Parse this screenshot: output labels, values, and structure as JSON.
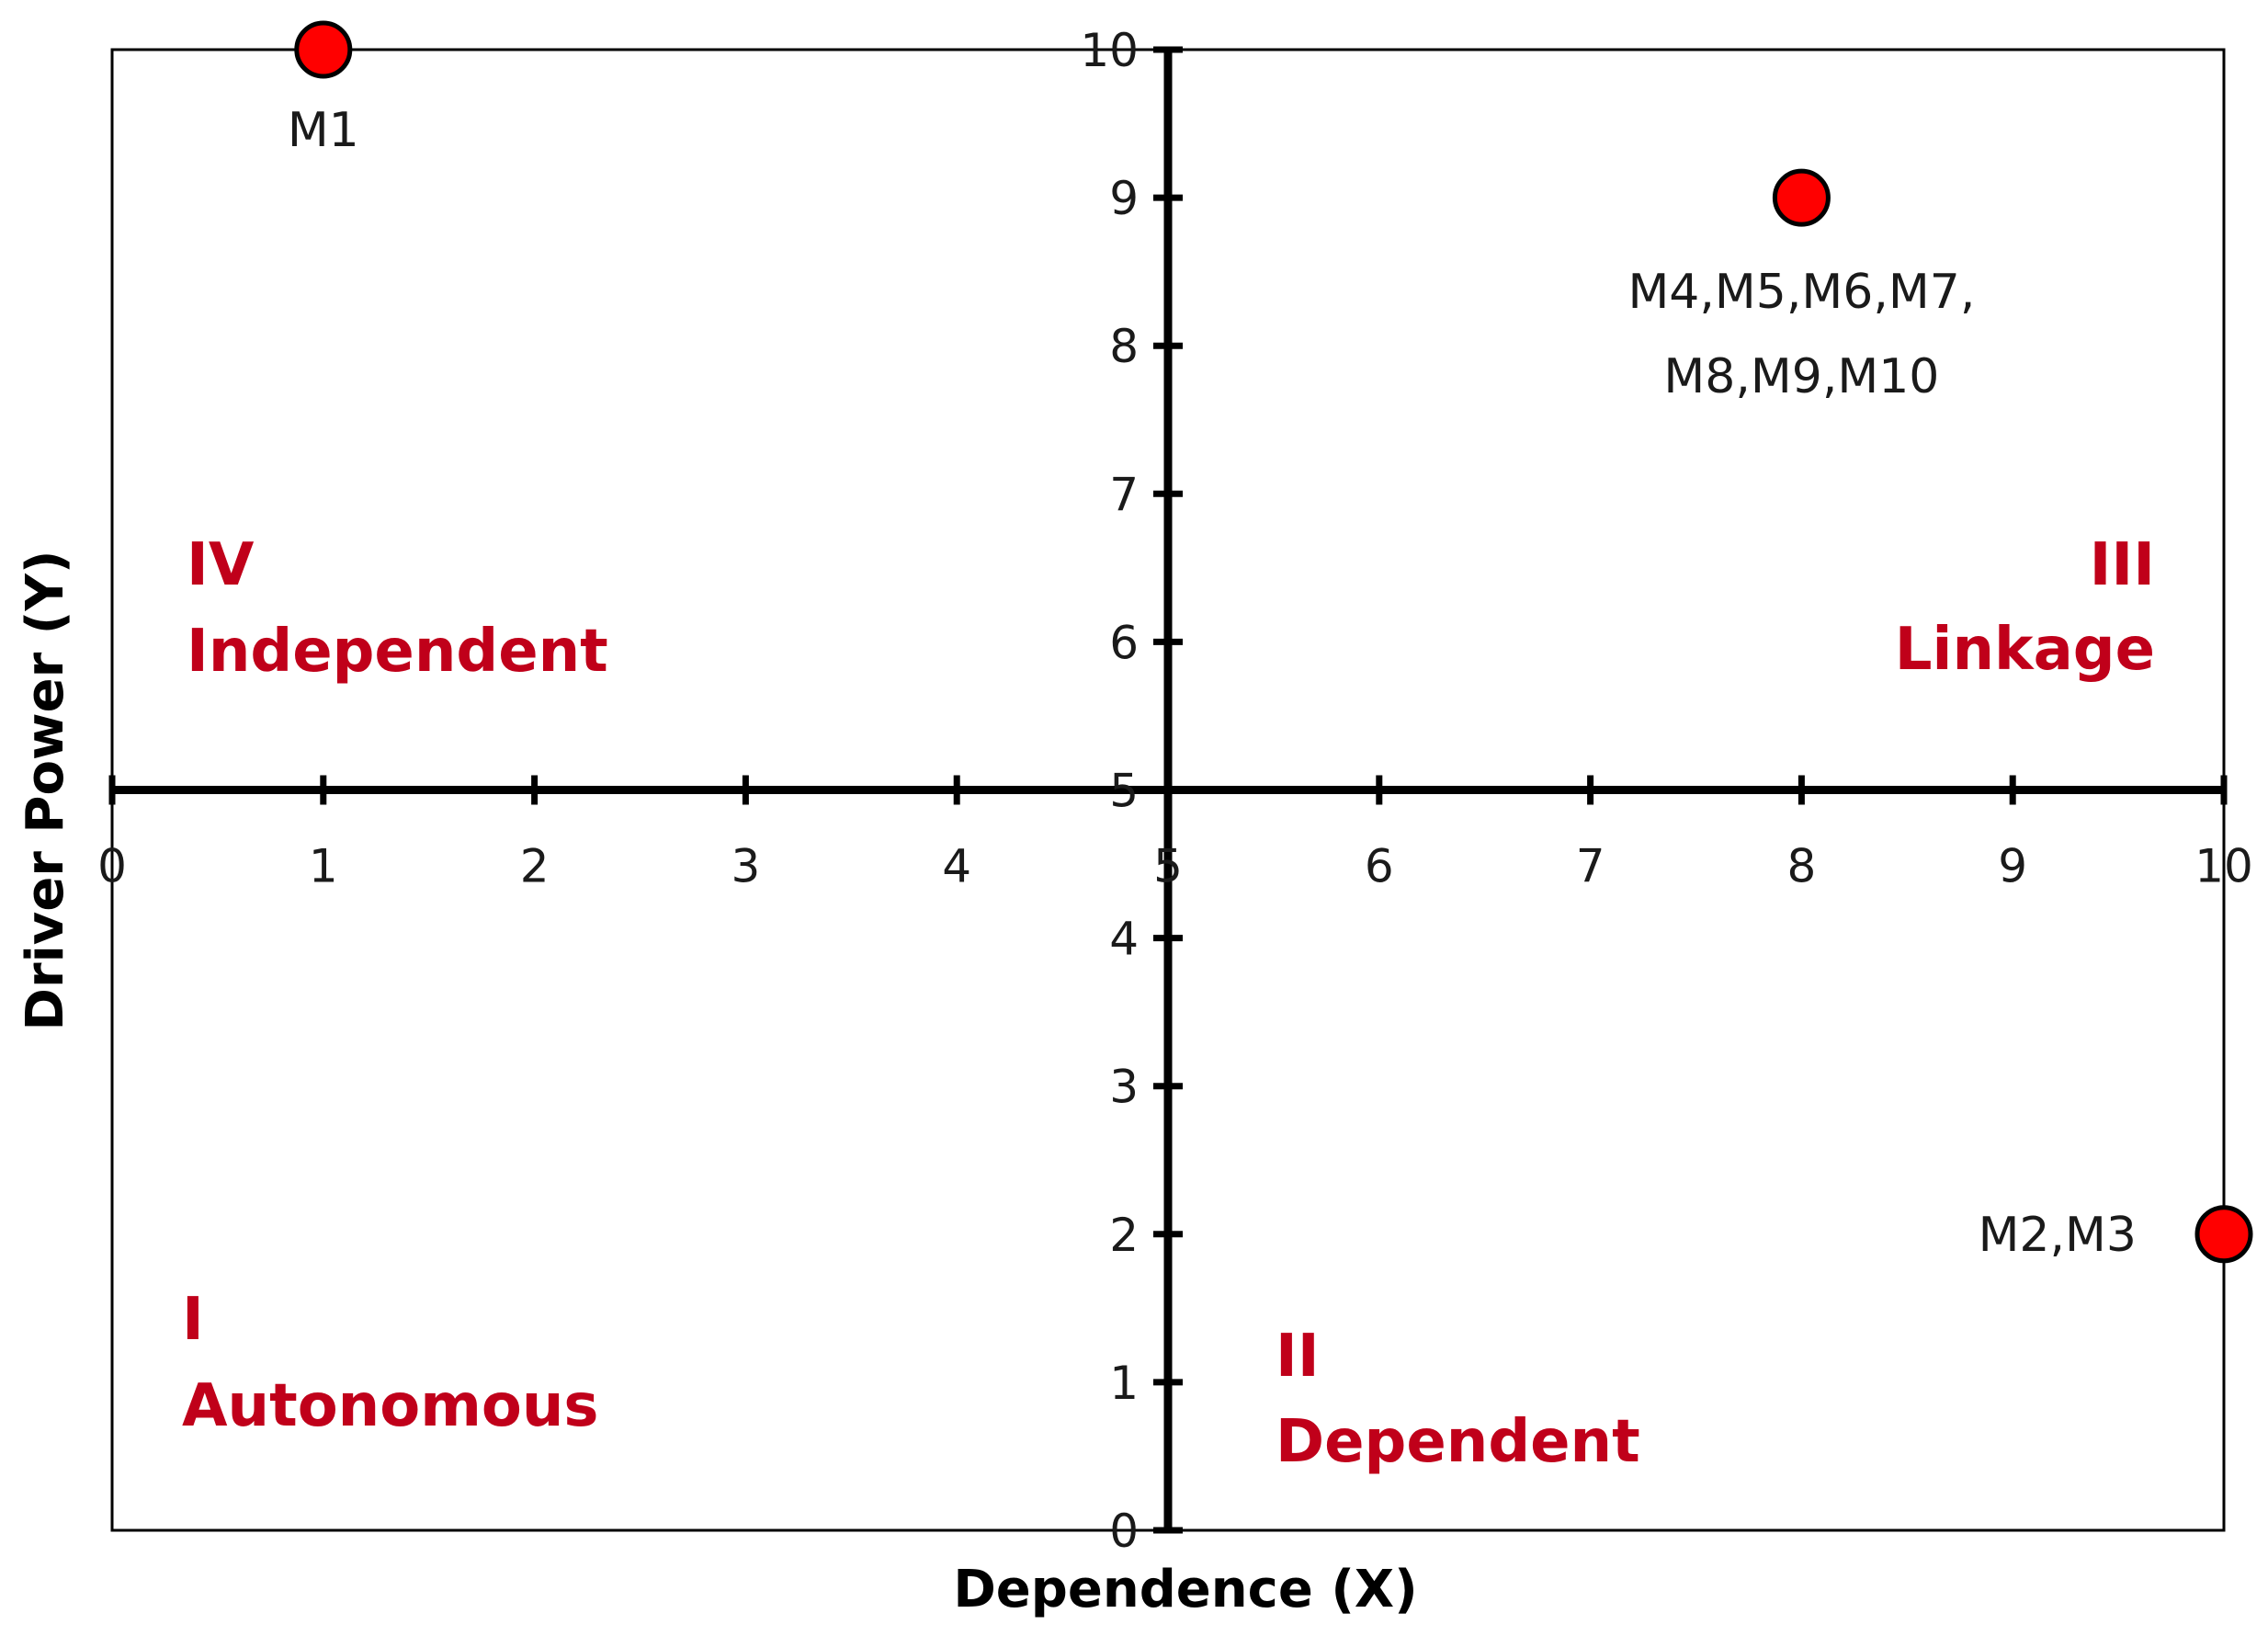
{
  "chart_data": {
    "type": "scatter",
    "title": "",
    "xlabel": "Dependence (X)",
    "ylabel": "Driver Power (Y)",
    "xlim": [
      0,
      10
    ],
    "ylim": [
      0,
      10
    ],
    "x_ticks": [
      "0",
      "1",
      "2",
      "3",
      "4",
      "5",
      "6",
      "7",
      "8",
      "9",
      "10"
    ],
    "y_ticks_upper": [
      "5",
      "6",
      "7",
      "8",
      "9",
      "10"
    ],
    "y_ticks_lower": [
      "0",
      "1",
      "2",
      "3",
      "4"
    ],
    "grid": false,
    "points": [
      {
        "label": "M1",
        "x": 1,
        "y": 10
      },
      {
        "label_lines": [
          "M4,M5,M6,M7,",
          "M8,M9,M10"
        ],
        "x": 8,
        "y": 9
      },
      {
        "label": "M2,M3",
        "x": 10,
        "y": 2
      }
    ],
    "quadrants": [
      {
        "numeral": "IV",
        "name": "Independent"
      },
      {
        "numeral": "III",
        "name": "Linkage"
      },
      {
        "numeral": "I",
        "name": "Autonomous"
      },
      {
        "numeral": "II",
        "name": "Dependent"
      }
    ],
    "colors": {
      "point_fill": "#ff0000",
      "point_stroke": "#000000",
      "quadrant_text": "#c0001a",
      "axis": "#000000"
    }
  }
}
